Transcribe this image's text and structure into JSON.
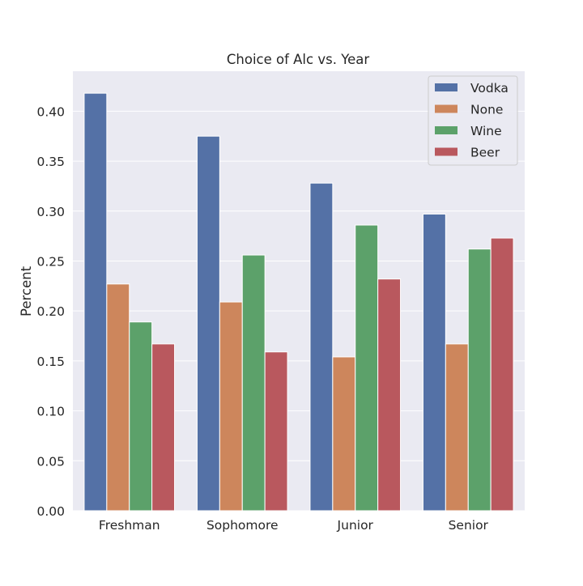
{
  "chart_data": {
    "type": "bar",
    "title": "Choice of Alc vs. Year",
    "xlabel": "",
    "ylabel": "Percent",
    "categories": [
      "Freshman",
      "Sophomore",
      "Junior",
      "Senior"
    ],
    "ylim": [
      0,
      0.44
    ],
    "yticks": [
      "0.00",
      "0.05",
      "0.10",
      "0.15",
      "0.20",
      "0.25",
      "0.30",
      "0.35",
      "0.40"
    ],
    "grid": true,
    "legend_position": "top-right",
    "series": [
      {
        "name": "Vodka",
        "color": "#5471a6",
        "values": [
          0.418,
          0.375,
          0.328,
          0.297
        ]
      },
      {
        "name": "None",
        "color": "#cd865c",
        "values": [
          0.227,
          0.209,
          0.154,
          0.167
        ]
      },
      {
        "name": "Wine",
        "color": "#5ca16a",
        "values": [
          0.189,
          0.256,
          0.286,
          0.262
        ]
      },
      {
        "name": "Beer",
        "color": "#b9585e",
        "values": [
          0.167,
          0.159,
          0.232,
          0.273
        ]
      }
    ],
    "colors": {
      "plot_background": "#eaeaf2",
      "grid": "#ffffff",
      "text": "#262626"
    }
  }
}
